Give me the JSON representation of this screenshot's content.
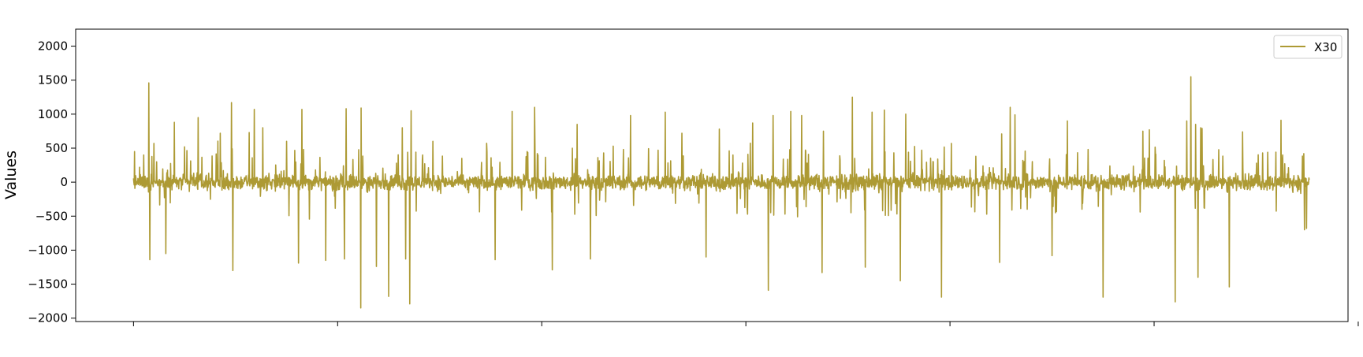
{
  "chart_data": {
    "type": "line",
    "title": "",
    "xlabel": "",
    "ylabel": "Values",
    "ylim": [
      -2050,
      2250
    ],
    "xlim": [
      -170,
      3570
    ],
    "yticks": [
      2000,
      1500,
      1000,
      500,
      0,
      -500,
      -1000,
      -1500,
      -2000
    ],
    "ytick_labels": [
      "2000",
      "1500",
      "1000",
      "500",
      "0",
      "−500",
      "−1000",
      "−1500",
      "−2000"
    ],
    "xticks": [
      0,
      600,
      1200,
      1800,
      2400,
      3000,
      3600
    ],
    "xtick_labels": [
      "",
      "",
      "",
      "",
      "",
      "",
      ""
    ],
    "grid": false,
    "legend_position": "upper right",
    "color": "#ad9a34",
    "series": [
      {
        "name": "X30",
        "sample_count": 3457,
        "x_range": [
          0,
          3456
        ],
        "typical_amplitude": 100,
        "peaks": [
          [
            3,
            450
          ],
          [
            18,
            220
          ],
          [
            30,
            400
          ],
          [
            45,
            1460
          ],
          [
            48,
            -1140
          ],
          [
            60,
            570
          ],
          [
            68,
            300
          ],
          [
            95,
            -1050
          ],
          [
            120,
            880
          ],
          [
            150,
            520
          ],
          [
            190,
            950
          ],
          [
            255,
            720
          ],
          [
            288,
            1170
          ],
          [
            292,
            -1300
          ],
          [
            340,
            730
          ],
          [
            355,
            1070
          ],
          [
            380,
            800
          ],
          [
            450,
            600
          ],
          [
            485,
            -1190
          ],
          [
            495,
            1070
          ],
          [
            535,
            180
          ],
          [
            565,
            -1150
          ],
          [
            620,
            -1130
          ],
          [
            625,
            1080
          ],
          [
            668,
            -1850
          ],
          [
            669,
            1090
          ],
          [
            714,
            -1240
          ],
          [
            750,
            -1680
          ],
          [
            790,
            800
          ],
          [
            800,
            -1130
          ],
          [
            812,
            -1790
          ],
          [
            816,
            1050
          ],
          [
            880,
            600
          ],
          [
            965,
            350
          ],
          [
            1063,
            -1140
          ],
          [
            1113,
            1040
          ],
          [
            1179,
            1100
          ],
          [
            1180,
            580
          ],
          [
            1231,
            -1290
          ],
          [
            1290,
            500
          ],
          [
            1304,
            850
          ],
          [
            1343,
            -1130
          ],
          [
            1410,
            530
          ],
          [
            1461,
            980
          ],
          [
            1563,
            1030
          ],
          [
            1612,
            720
          ],
          [
            1683,
            -1100
          ],
          [
            1722,
            780
          ],
          [
            1820,
            870
          ],
          [
            1866,
            -1590
          ],
          [
            1880,
            980
          ],
          [
            1932,
            1040
          ],
          [
            1964,
            980
          ],
          [
            2024,
            -1330
          ],
          [
            2028,
            750
          ],
          [
            2113,
            1250
          ],
          [
            2151,
            -1250
          ],
          [
            2171,
            1030
          ],
          [
            2207,
            1060
          ],
          [
            2254,
            -1450
          ],
          [
            2270,
            1000
          ],
          [
            2317,
            470
          ],
          [
            2375,
            -1690
          ],
          [
            2404,
            570
          ],
          [
            2459,
            180
          ],
          [
            2476,
            380
          ],
          [
            2546,
            -1180
          ],
          [
            2552,
            710
          ],
          [
            2577,
            1100
          ],
          [
            2591,
            990
          ],
          [
            2700,
            -1080
          ],
          [
            2745,
            900
          ],
          [
            2850,
            -1690
          ],
          [
            2967,
            750
          ],
          [
            2986,
            770
          ],
          [
            3005,
            410
          ],
          [
            3062,
            -1760
          ],
          [
            3096,
            900
          ],
          [
            3108,
            1550
          ],
          [
            3122,
            850
          ],
          [
            3129,
            -1400
          ],
          [
            3137,
            800
          ],
          [
            3141,
            790
          ],
          [
            3221,
            -1540
          ],
          [
            3260,
            740
          ],
          [
            3319,
            430
          ],
          [
            3373,
            910
          ],
          [
            3440,
            420
          ],
          [
            3442,
            -700
          ],
          [
            3448,
            -680
          ]
        ]
      }
    ]
  }
}
